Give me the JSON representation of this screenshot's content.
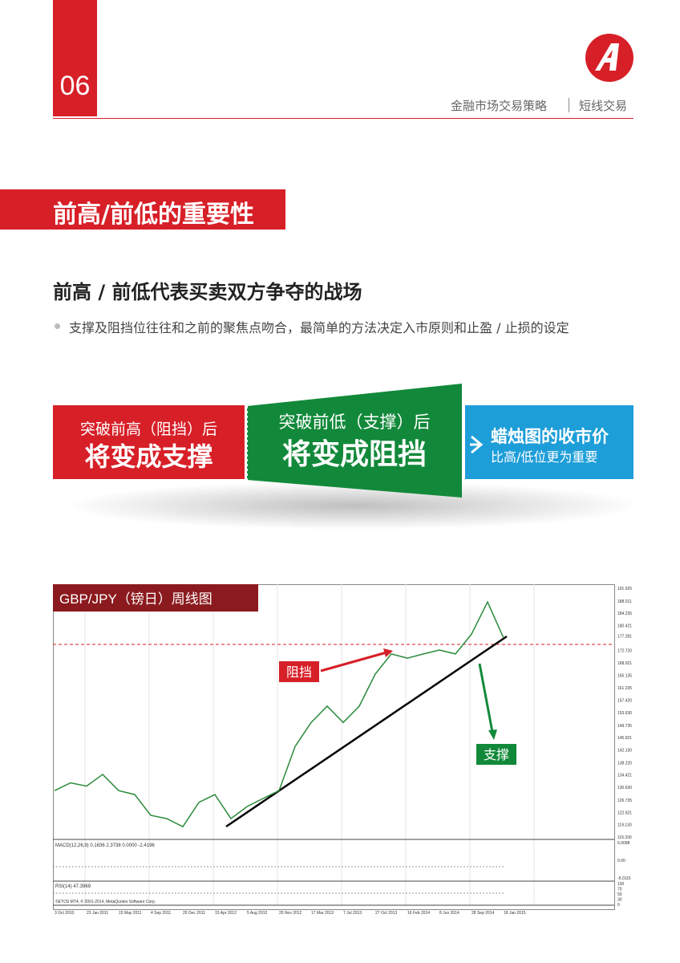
{
  "header": {
    "page_number": "06",
    "breadcrumb": "金融市场交易策略",
    "section": "短线交易"
  },
  "banner": {
    "title": "前高/前低的重要性"
  },
  "heading": "前高 / 前低代表买卖双方争夺的战场",
  "bullet": "支撑及阻挡位往往和之前的聚焦点吻合，最简单的方法决定入市原则和止盈 / 止损的设定",
  "cards": [
    {
      "line1": "突破前高（阻挡）后",
      "line2": "将变成支撑"
    },
    {
      "line1": "突破前低（支撑）后",
      "line2": "将变成阻挡"
    },
    {
      "line1": "蜡烛图的收市价",
      "line2": "比高/低位更为重要"
    }
  ],
  "figure": {
    "title": "GBP/JPY（镑日）周线图",
    "annotations": {
      "resistance": "阻挡",
      "support": "支撑"
    },
    "y_axis_labels": [
      "191.925",
      "188.011",
      "184.235",
      "180.421",
      "177.281",
      "172.720",
      "168.921",
      "165.135",
      "161.235",
      "157.420",
      "153.630",
      "149.735",
      "145.921",
      "142.130",
      "138.220",
      "134.421",
      "130.630",
      "126.735",
      "122.921",
      "119.130",
      "115.330"
    ],
    "x_axis_labels": [
      "3 Oct 2010",
      "23 Jan 2011",
      "15 May 2011",
      "4 Sep 2011",
      "25 Dec 2011",
      "15 Apr 2012",
      "5 Aug 2012",
      "25 Nov 2012",
      "17 Mar 2013",
      "7 Jul 2013",
      "27 Oct 2013",
      "16 Feb 2014",
      "8 Jun 2014",
      "28 Sep 2014",
      "18 Jan 2015"
    ],
    "macd_label": "MACD(12,26,9) 0.1636 2.3738 0.0000 -2.4196",
    "macd_axis_labels": [
      "6.0098",
      "0.00",
      "-5.0115"
    ],
    "rsi_label": "RSI(14) 47.3969",
    "rsi_axis_labels": [
      "100",
      "70",
      "50",
      "30",
      "0"
    ],
    "footer_note": "©ETOS MT4, © 2001-2014, MetaQuotes Software Corp.",
    "prices": [
      129.6,
      132,
      131,
      134.6,
      129.6,
      128.4,
      122,
      121,
      118.5,
      126,
      128.4,
      121,
      124.7,
      127.2,
      129.6,
      143.2,
      150.6,
      155.6,
      150.6,
      155.6,
      165.5,
      171.7,
      170.4,
      171.7,
      172.9,
      171.7,
      177.8,
      187.7,
      176.6
    ]
  }
}
